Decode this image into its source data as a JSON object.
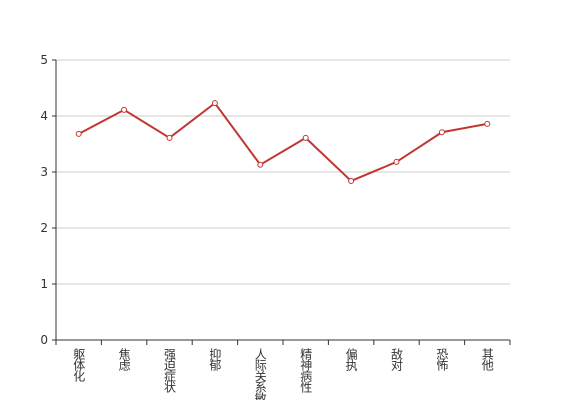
{
  "chart_data": {
    "type": "line",
    "categories": [
      "躯体化",
      "焦虑",
      "强迫症状",
      "抑郁",
      "人际关系敏感",
      "精神病性",
      "偏执",
      "敌对",
      "恐怖",
      "其他"
    ],
    "series": [
      {
        "color": "#c23531",
        "values": [
          3.68,
          4.11,
          3.61,
          4.23,
          3.13,
          3.61,
          2.84,
          3.18,
          3.71,
          3.86
        ]
      }
    ],
    "ylim": [
      0,
      5
    ],
    "yticks": [
      0,
      1,
      2,
      3,
      4,
      5
    ],
    "grid": true
  }
}
